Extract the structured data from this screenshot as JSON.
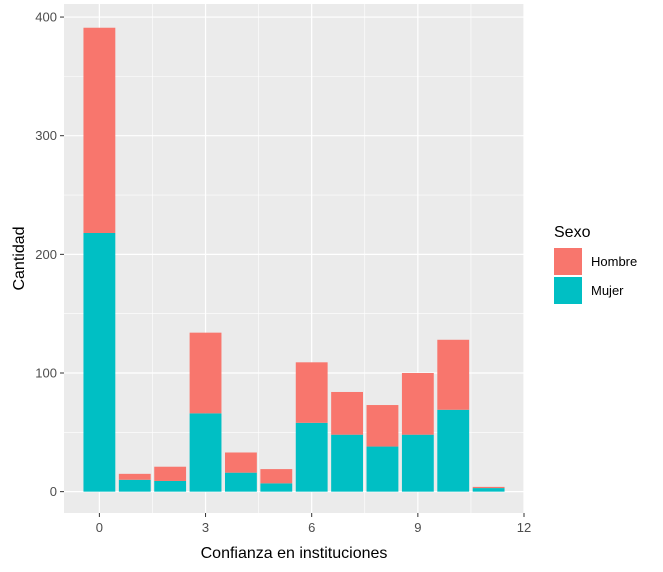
{
  "chart_data": {
    "type": "bar",
    "stacked": true,
    "x": [
      0,
      1,
      2,
      3,
      4,
      5,
      6,
      7,
      8,
      9,
      10,
      11
    ],
    "series": [
      {
        "name": "Hombre",
        "values": [
          173,
          5,
          12,
          68,
          17,
          12,
          51,
          36,
          35,
          52,
          59,
          1
        ],
        "color": "#F8766D"
      },
      {
        "name": "Mujer",
        "values": [
          218,
          10,
          9,
          66,
          16,
          7,
          58,
          48,
          38,
          48,
          69,
          3
        ],
        "color": "#00BFC4"
      }
    ],
    "xlabel": "Confianza en instituciones",
    "ylabel": "Cantidad",
    "xlim": [
      -1,
      12
    ],
    "ylim": [
      -18,
      411
    ],
    "xticks": [
      0,
      3,
      6,
      9,
      12
    ],
    "yticks": [
      0,
      100,
      200,
      300,
      400
    ],
    "grid": true,
    "legend_title": "Sexo",
    "legend_position": "right",
    "panel_background": "#EBEBEB",
    "grid_color": "#FFFFFF"
  }
}
